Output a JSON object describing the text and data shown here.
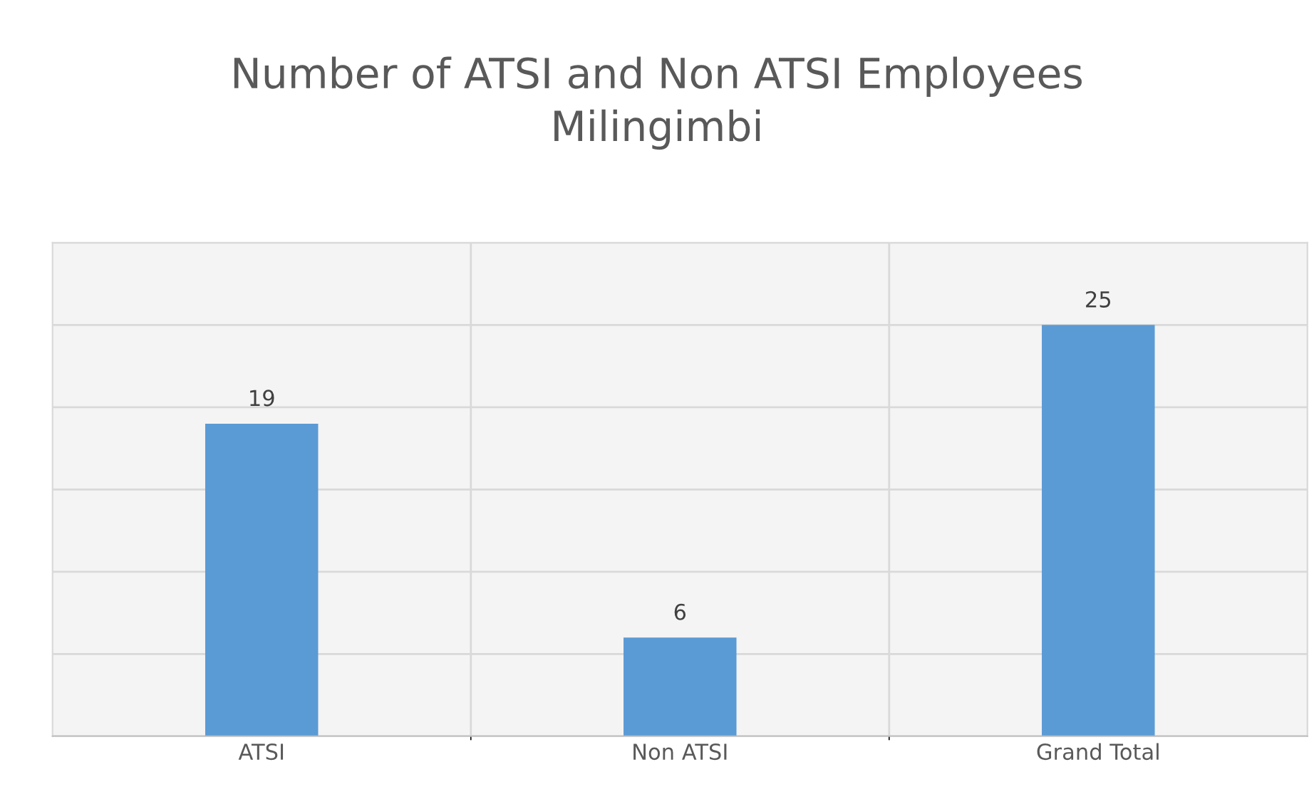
{
  "chart_data": {
    "type": "bar",
    "title": "Number of ATSI and Non ATSI Employees\nMilingimbi",
    "categories": [
      "ATSI",
      "Non ATSI",
      "Grand Total"
    ],
    "values": [
      19,
      6,
      25
    ],
    "color": "#5b9bd5",
    "data_labels": true,
    "ylim": [
      0,
      30
    ],
    "yticks": [
      {
        "value": 0,
        "label": null
      },
      {
        "value": 5,
        "label": null
      },
      {
        "value": 10,
        "label": null
      },
      {
        "value": 15,
        "label": null
      },
      {
        "value": 20,
        "label": null
      },
      {
        "value": 25,
        "label": null
      },
      {
        "value": 30,
        "label": null
      }
    ],
    "tick_labels": "x",
    "grid": true
  }
}
